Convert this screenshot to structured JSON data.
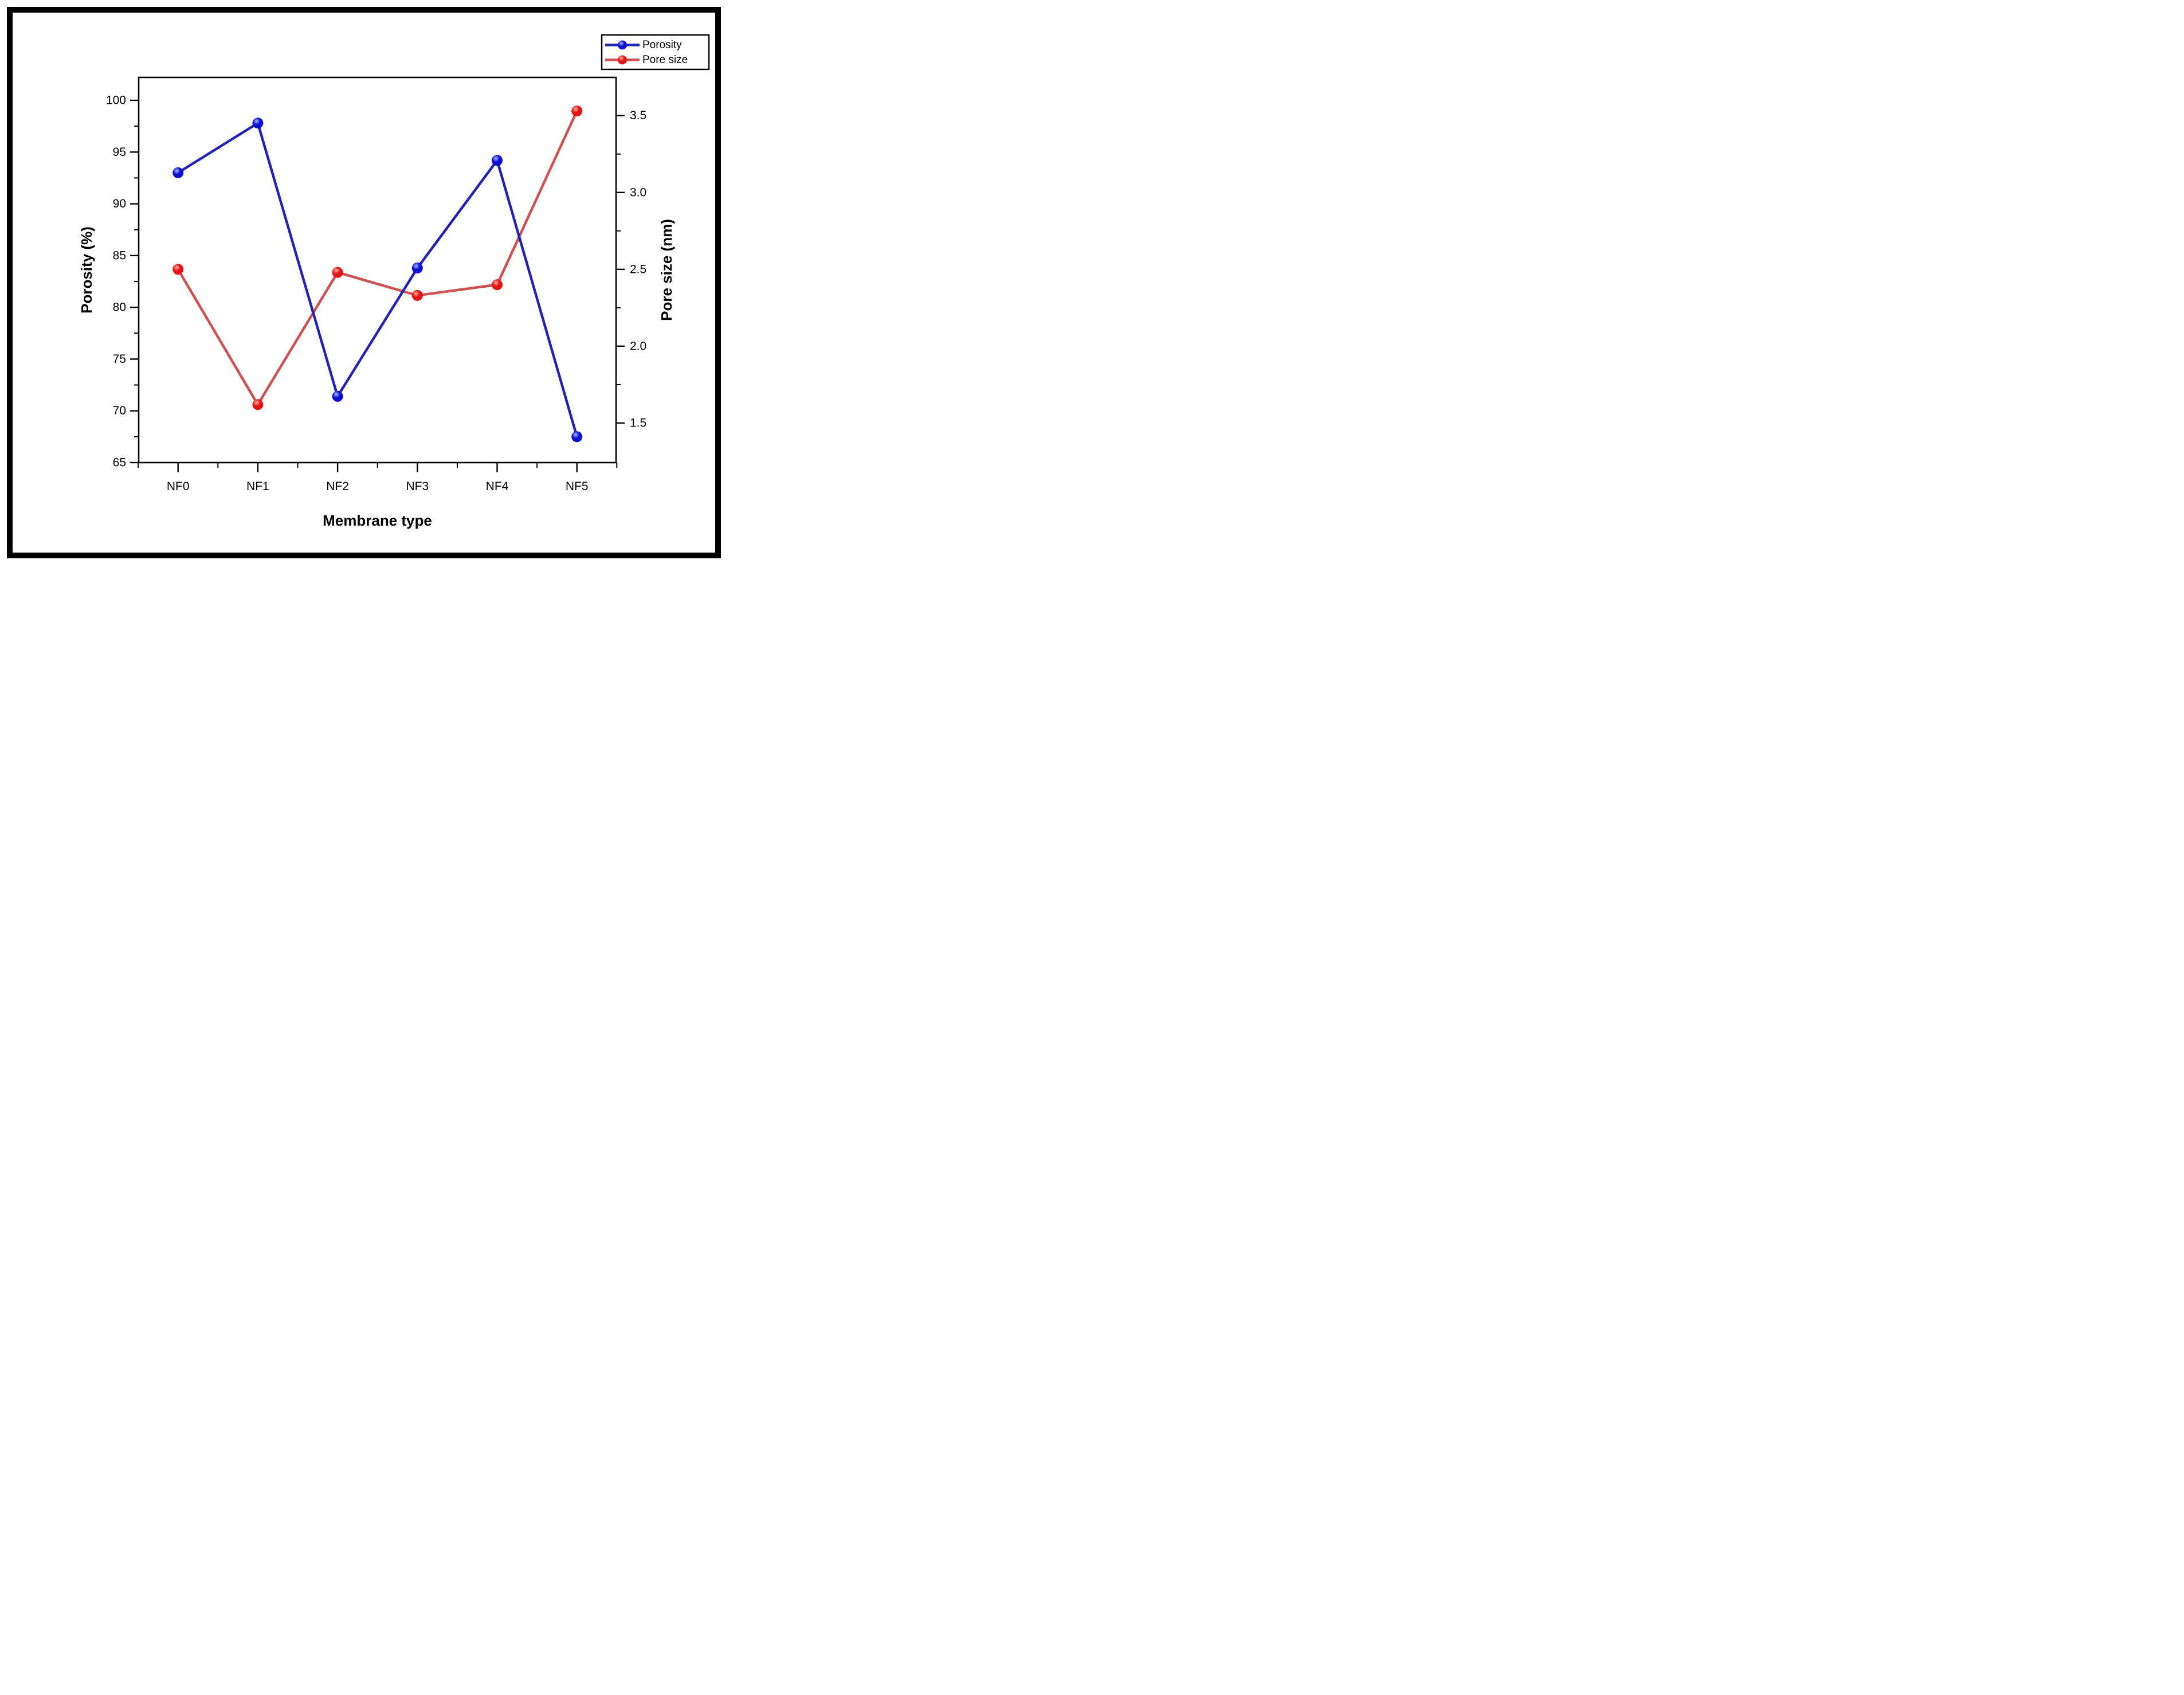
{
  "figure": {
    "background": "#ffffff",
    "border_color": "#000000",
    "legend": {
      "position": "top-right",
      "border_color": "#000000",
      "entries": [
        {
          "label": "Porosity"
        },
        {
          "label": "Pore size"
        }
      ]
    }
  },
  "chart_data": {
    "type": "line",
    "categories": [
      "NF0",
      "NF1",
      "NF2",
      "NF3",
      "NF4",
      "NF5"
    ],
    "series": [
      {
        "name": "Porosity",
        "axis": "left",
        "line_color": "#2222b4",
        "marker_color": "#0d0dd2",
        "marker_highlight": "#aab6ff",
        "values": [
          93.0,
          97.8,
          71.4,
          83.8,
          94.2,
          67.5
        ]
      },
      {
        "name": "Pore size",
        "axis": "right",
        "line_color": "#cd5151",
        "marker_color": "#e41414",
        "marker_highlight": "#ffb0a6",
        "values": [
          2.5,
          1.62,
          2.48,
          2.33,
          2.4,
          3.53
        ]
      }
    ],
    "xlabel": "Membrane type",
    "ylabel_left": "Porosity (%)",
    "ylabel_right": "Pore size (nm)",
    "left_axis": {
      "min": 65,
      "max": 102.2,
      "major_ticks": [
        100,
        95,
        90,
        85,
        80,
        75,
        70,
        65
      ],
      "minor_ticks": [
        97.5,
        92.5,
        87.5,
        82.5,
        77.5,
        72.5,
        67.5
      ]
    },
    "right_axis": {
      "min": 1.244,
      "max": 3.749,
      "major_ticks": [
        3.5,
        3.0,
        2.5,
        2.0,
        1.5
      ],
      "minor_ticks": [
        3.25,
        2.75,
        2.25,
        1.75
      ]
    },
    "grid": false,
    "legend_position": "top-right"
  }
}
